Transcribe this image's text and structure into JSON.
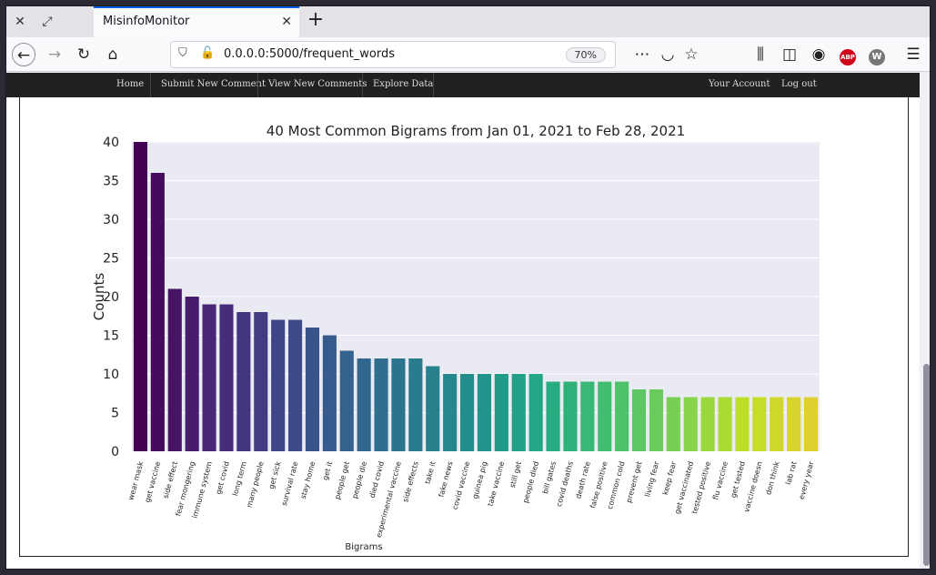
{
  "browser": {
    "tab_title": "MisinfoMonitor",
    "url": "0.0.0.0:5000/frequent_words",
    "zoom": "70%",
    "icons": [
      "close-icon",
      "restore-icon",
      "back-icon",
      "forward-icon",
      "reload-icon",
      "home-icon",
      "shield-icon",
      "insecure-lock-icon",
      "more-icon",
      "pocket-icon",
      "star-icon",
      "library-icon",
      "sidebar-icon",
      "account-icon",
      "adblock-icon",
      "extension-icon",
      "menu-icon"
    ],
    "adblock_label": "ABP",
    "ext_label": "W"
  },
  "site_nav": {
    "home": "Home",
    "submit": "Submit New Comment",
    "view": "View New Comments",
    "explore": "Explore Data",
    "account": "Your Account",
    "logout": "Log out"
  },
  "chart_data": {
    "type": "bar",
    "title": "40 Most Common Bigrams from Jan 01, 2021 to Feb 28, 2021",
    "xlabel": "Bigrams",
    "ylabel": "Counts",
    "ylim": [
      0,
      40
    ],
    "yticks": [
      0,
      5,
      10,
      15,
      20,
      25,
      30,
      35,
      40
    ],
    "grid": true,
    "palette": "viridis",
    "categories": [
      "wear mask",
      "get vaccine",
      "side effect",
      "fear mongering",
      "immune system",
      "get covid",
      "long term",
      "many people",
      "get sick",
      "survival rate",
      "stay home",
      "get it",
      "people get",
      "people die",
      "died covid",
      "experimental vaccine",
      "side effects",
      "take it",
      "fake news",
      "covid vaccine",
      "guinea pig",
      "take vaccine",
      "still get",
      "people died",
      "bill gates",
      "covid deaths",
      "death rate",
      "false positive",
      "common cold",
      "prevent get",
      "living fear",
      "keep fear",
      "get vaccinated",
      "tested positive",
      "flu vaccine",
      "get tested",
      "vaccine doesn",
      "don think",
      "lab rat",
      "every year"
    ],
    "values": [
      40,
      36,
      21,
      20,
      19,
      19,
      18,
      18,
      17,
      17,
      16,
      15,
      13,
      12,
      12,
      12,
      12,
      11,
      10,
      10,
      10,
      10,
      10,
      10,
      9,
      9,
      9,
      9,
      9,
      8,
      8,
      7,
      7,
      7,
      7,
      7,
      7,
      7,
      7,
      7
    ]
  }
}
